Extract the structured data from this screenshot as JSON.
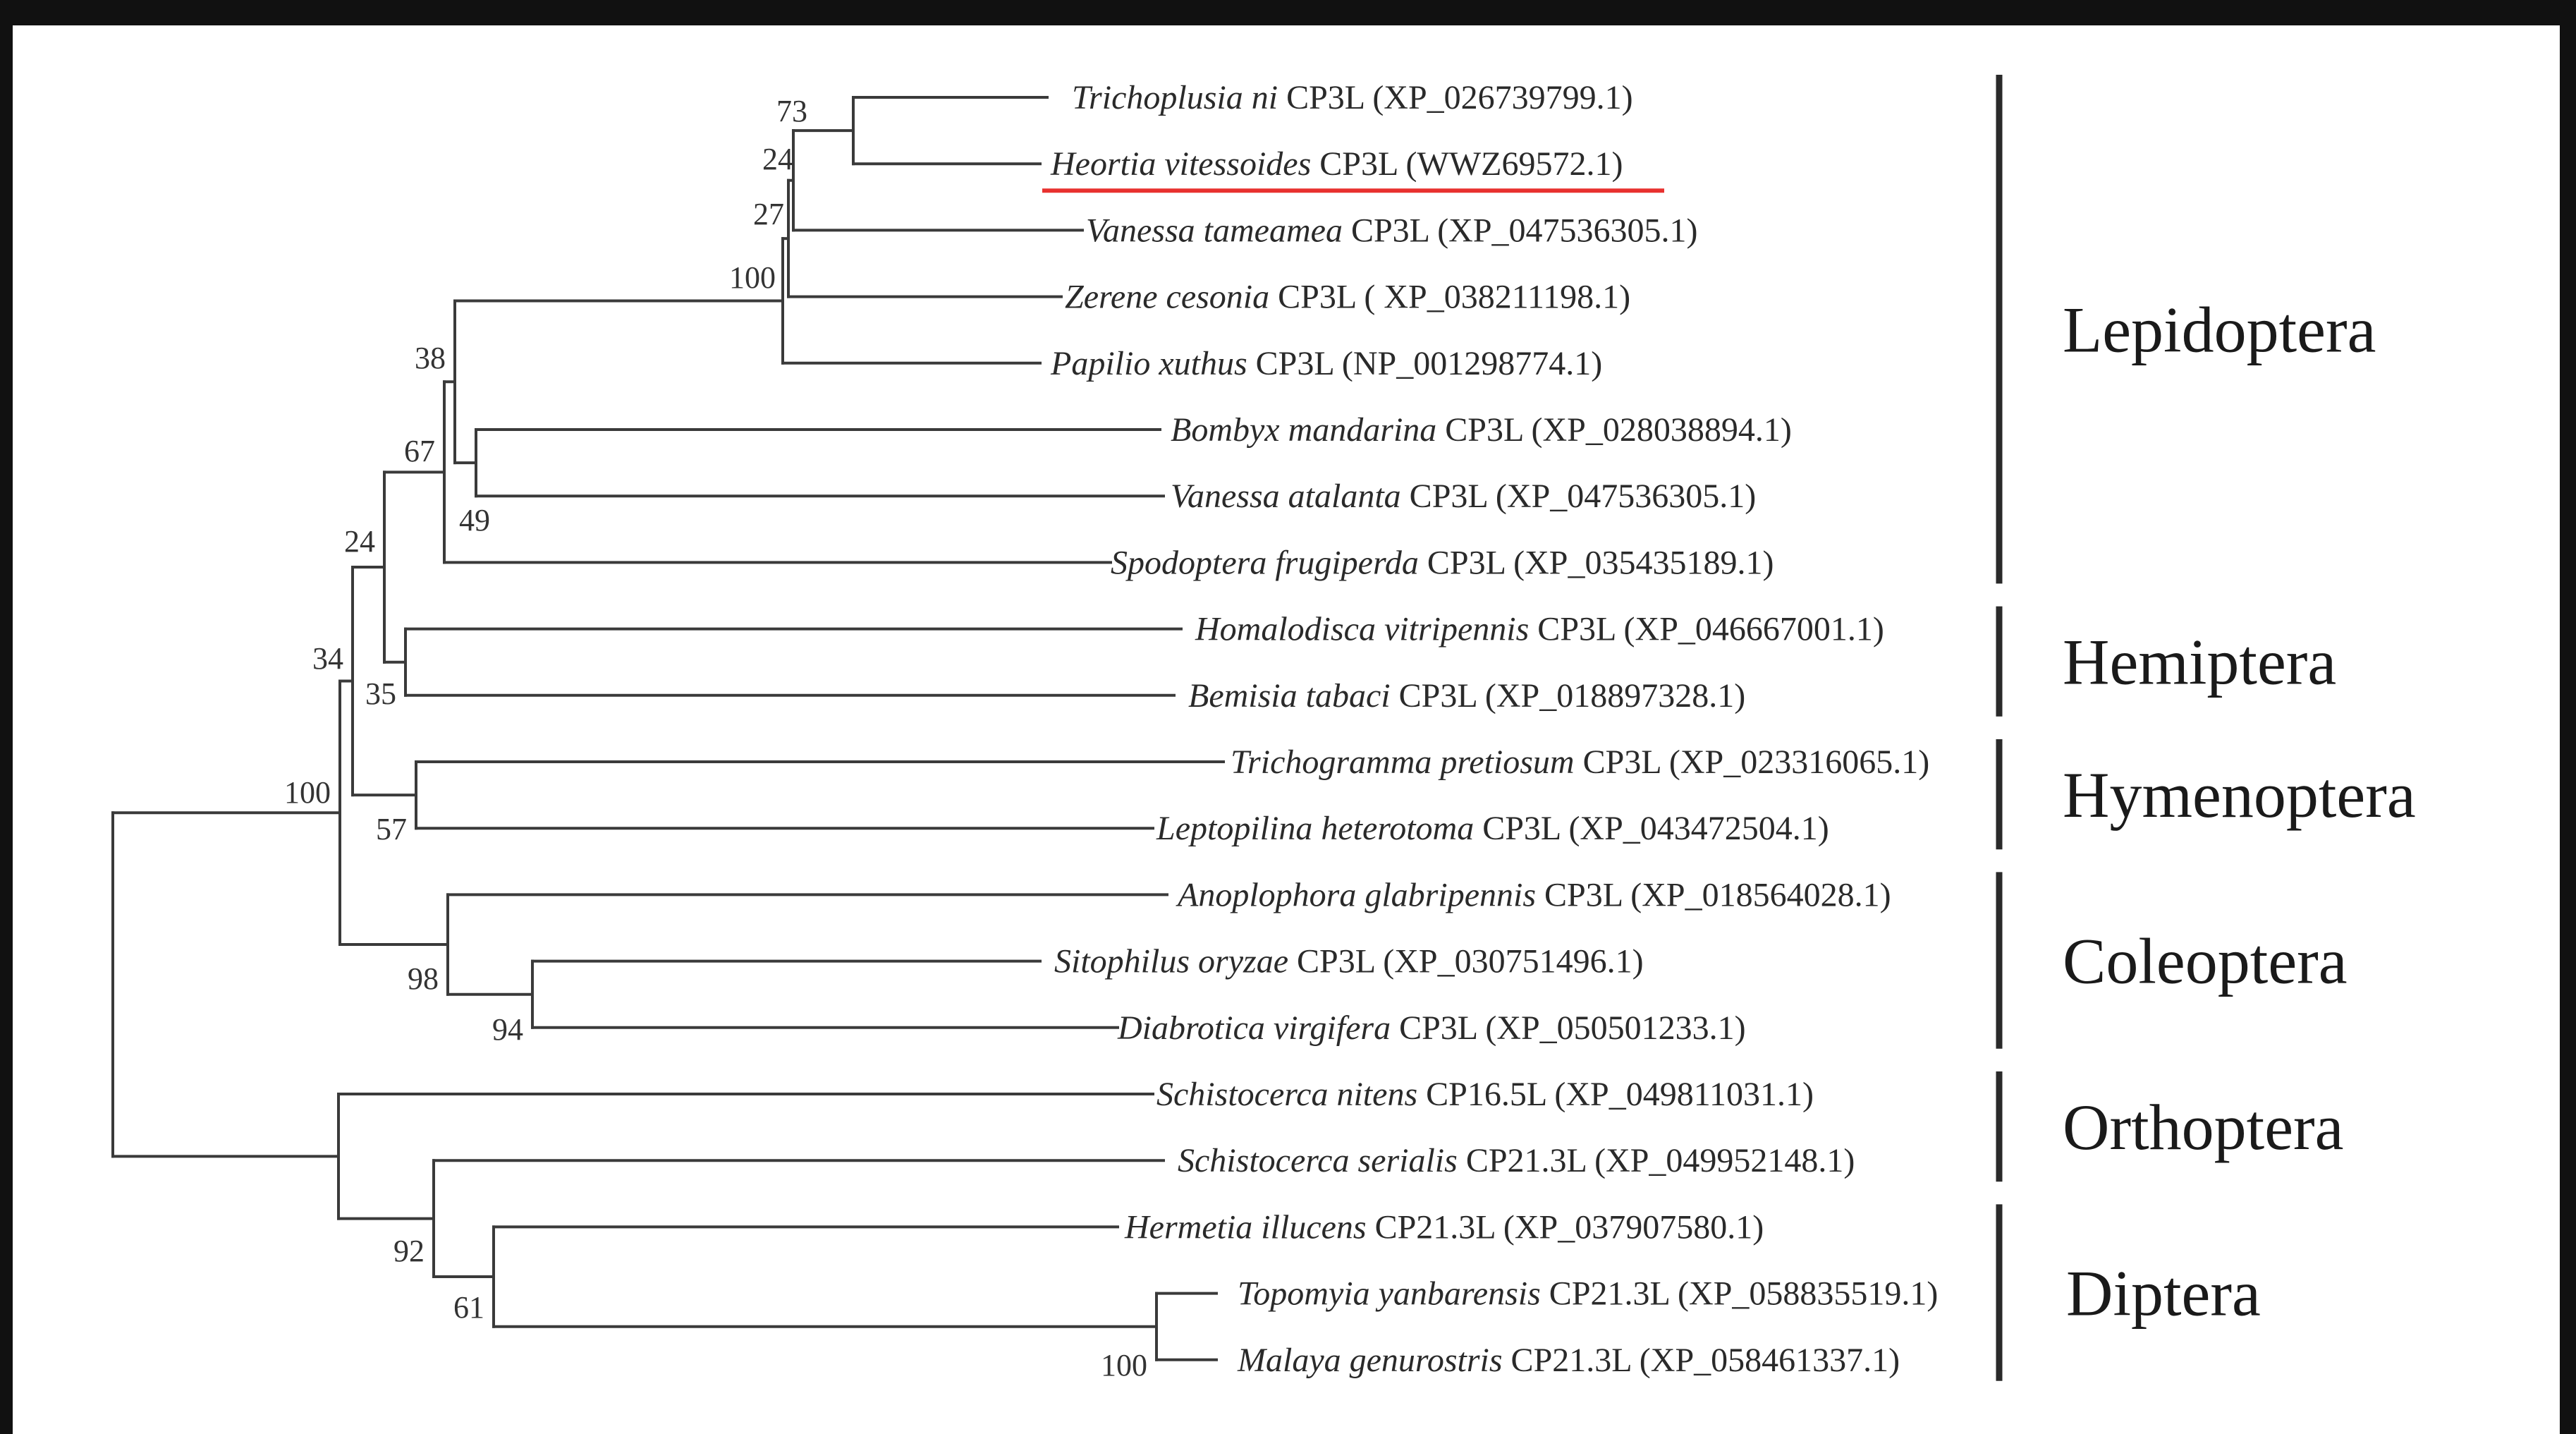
{
  "highlight_color": "#e8312f",
  "leaves": [
    {
      "id": "L1",
      "species": "Trichoplusia ni",
      "gene": "CP3L",
      "accession": "(XP_026739799.1)",
      "highlight": false
    },
    {
      "id": "L2",
      "species": "Heortia vitessoides",
      "gene": "CP3L",
      "accession": "(WWZ69572.1)",
      "highlight": true
    },
    {
      "id": "L3",
      "species": "Vanessa tameamea",
      "gene": "CP3L",
      "accession": "(XP_047536305.1)",
      "highlight": false
    },
    {
      "id": "L4",
      "species": "Zerene cesonia",
      "gene": "CP3L",
      "accession": "( XP_038211198.1)",
      "highlight": false
    },
    {
      "id": "L5",
      "species": "Papilio xuthus",
      "gene": "CP3L",
      "accession": "(NP_001298774.1)",
      "highlight": false
    },
    {
      "id": "L6",
      "species": "Bombyx mandarina",
      "gene": "CP3L",
      "accession": "(XP_028038894.1)",
      "highlight": false
    },
    {
      "id": "L7",
      "species": "Vanessa atalanta",
      "gene": "CP3L",
      "accession": "(XP_047536305.1)",
      "highlight": false
    },
    {
      "id": "L8",
      "species": "Spodoptera frugiperda",
      "gene": "CP3L",
      "accession": "(XP_035435189.1)",
      "highlight": false
    },
    {
      "id": "L9",
      "species": "Homalodisca vitripennis",
      "gene": "CP3L",
      "accession": "(XP_046667001.1)",
      "highlight": false
    },
    {
      "id": "L10",
      "species": "Bemisia tabaci",
      "gene": "CP3L",
      "accession": "(XP_018897328.1)",
      "highlight": false
    },
    {
      "id": "L11",
      "species": "Trichogramma pretiosum",
      "gene": "CP3L",
      "accession": "(XP_023316065.1)",
      "highlight": false
    },
    {
      "id": "L12",
      "species": "Leptopilina heterotoma",
      "gene": "CP3L",
      "accession": "(XP_043472504.1)",
      "highlight": false
    },
    {
      "id": "L13",
      "species": "Anoplophora glabripennis",
      "gene": "CP3L",
      "accession": "(XP_018564028.1)",
      "highlight": false
    },
    {
      "id": "L14",
      "species": "Sitophilus oryzae",
      "gene": "CP3L",
      "accession": "(XP_030751496.1)",
      "highlight": false
    },
    {
      "id": "L15",
      "species": "Diabrotica virgifera",
      "gene": "CP3L",
      "accession": "(XP_050501233.1)",
      "highlight": false
    },
    {
      "id": "L16",
      "species": "Schistocerca nitens",
      "gene": "CP16.5L",
      "accession": "(XP_049811031.1)",
      "highlight": false
    },
    {
      "id": "L17",
      "species": "Schistocerca serialis",
      "gene": "CP21.3L",
      "accession": "(XP_049952148.1)",
      "highlight": false
    },
    {
      "id": "L18",
      "species": "Hermetia illucens",
      "gene": "CP21.3L",
      "accession": "(XP_037907580.1)",
      "highlight": false
    },
    {
      "id": "L19",
      "species": "Topomyia yanbarensis",
      "gene": "CP21.3L",
      "accession": "(XP_058835519.1)",
      "highlight": false
    },
    {
      "id": "L20",
      "species": "Malaya genurostris",
      "gene": "CP21.3L",
      "accession": "(XP_058461337.1)",
      "highlight": false
    }
  ],
  "support_values": [
    {
      "node": "n_tni_hvi",
      "value": "73"
    },
    {
      "node": "n_l1_3",
      "value": "24"
    },
    {
      "node": "n_l1_4",
      "value": "27"
    },
    {
      "node": "n_l1_5",
      "value": "100"
    },
    {
      "node": "n_bom_van",
      "value": "49"
    },
    {
      "node": "n_lep_a",
      "value": "38"
    },
    {
      "node": "n_lep",
      "value": "67"
    },
    {
      "node": "n_hem",
      "value": "35"
    },
    {
      "node": "n_lep_hem",
      "value": "24"
    },
    {
      "node": "n_hym",
      "value": "57"
    },
    {
      "node": "n_lhh",
      "value": "34"
    },
    {
      "node": "n_sit_dia",
      "value": "94"
    },
    {
      "node": "n_col",
      "value": "98"
    },
    {
      "node": "n_top_mal",
      "value": "100"
    },
    {
      "node": "n_dip",
      "value": "61"
    },
    {
      "node": "n_ort_dip",
      "value": "92"
    },
    {
      "node": "n_ingroup",
      "value": "100"
    }
  ],
  "orders": [
    {
      "name": "Lepidoptera",
      "from": "L1",
      "to": "L8"
    },
    {
      "name": "Hemiptera",
      "from": "L9",
      "to": "L10"
    },
    {
      "name": "Hymenoptera",
      "from": "L11",
      "to": "L12"
    },
    {
      "name": "Coleoptera",
      "from": "L13",
      "to": "L15"
    },
    {
      "name": "Orthoptera",
      "from": "L16",
      "to": "L17"
    },
    {
      "name": "Diptera",
      "from": "L18",
      "to": "L20"
    }
  ]
}
